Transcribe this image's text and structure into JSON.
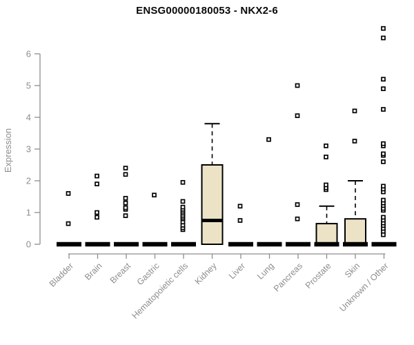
{
  "chart_data": {
    "type": "boxplot",
    "title": "ENSG00000180053 - NKX2-6",
    "ylabel": "Expression",
    "xlabel": "",
    "ylim": [
      0,
      6.9
    ],
    "yticks": [
      0,
      1,
      2,
      3,
      4,
      5,
      6
    ],
    "grid": false,
    "legend": "none",
    "box_fill": "#ece3c7",
    "box_stroke": "#000000",
    "axis_color": "#8d8d8d",
    "label_color": "#8d8d8d",
    "title_color": "#0a0a0a",
    "categories": [
      "Bladder",
      "Brain",
      "Breast",
      "Gastric",
      "Hematopoietic cells",
      "Kidney",
      "Liver",
      "Lung",
      "Pancreas",
      "Prostate",
      "Skin",
      "Unknown / Other"
    ],
    "series": [
      {
        "name": "Bladder",
        "q1": 0,
        "median": 0,
        "q3": 0,
        "whisker_low": 0,
        "whisker_high": 0,
        "outliers": [
          0.65,
          1.6
        ]
      },
      {
        "name": "Brain",
        "q1": 0,
        "median": 0,
        "q3": 0,
        "whisker_low": 0,
        "whisker_high": 0,
        "outliers": [
          0.85,
          1.0,
          1.9,
          2.15
        ]
      },
      {
        "name": "Breast",
        "q1": 0,
        "median": 0,
        "q3": 0,
        "whisker_low": 0,
        "whisker_high": 0,
        "outliers": [
          0.9,
          1.1,
          1.15,
          1.3,
          1.45,
          2.2,
          2.4
        ]
      },
      {
        "name": "Gastric",
        "q1": 0,
        "median": 0,
        "q3": 0,
        "whisker_low": 0,
        "whisker_high": 0,
        "outliers": [
          1.55
        ]
      },
      {
        "name": "Hematopoietic cells",
        "q1": 0,
        "median": 0,
        "q3": 0,
        "whisker_low": 0,
        "whisker_high": 0,
        "outliers": [
          0.46,
          0.52,
          0.6,
          0.7,
          0.8,
          0.85,
          0.91,
          0.98,
          1.04,
          1.1,
          1.17,
          1.35,
          1.95
        ]
      },
      {
        "name": "Kidney",
        "q1": 0,
        "median": 0.75,
        "q3": 2.5,
        "whisker_low": 0,
        "whisker_high": 3.8,
        "outliers": []
      },
      {
        "name": "Liver",
        "q1": 0,
        "median": 0,
        "q3": 0,
        "whisker_low": 0,
        "whisker_high": 0,
        "outliers": [
          0.75,
          1.2
        ]
      },
      {
        "name": "Lung",
        "q1": 0,
        "median": 0,
        "q3": 0,
        "whisker_low": 0,
        "whisker_high": 0,
        "outliers": [
          3.3
        ]
      },
      {
        "name": "Pancreas",
        "q1": 0,
        "median": 0,
        "q3": 0,
        "whisker_low": 0,
        "whisker_high": 0,
        "outliers": [
          0.8,
          1.25,
          4.05,
          5.0
        ]
      },
      {
        "name": "Prostate",
        "q1": 0,
        "median": 0,
        "q3": 0.65,
        "whisker_low": 0,
        "whisker_high": 1.2,
        "outliers": [
          1.72,
          1.78,
          1.87,
          2.75,
          3.1
        ]
      },
      {
        "name": "Skin",
        "q1": 0,
        "median": 0,
        "q3": 0.8,
        "whisker_low": 0,
        "whisker_high": 2.0,
        "outliers": [
          3.25,
          4.2
        ]
      },
      {
        "name": "Unknown / Other",
        "q1": 0,
        "median": 0,
        "q3": 0,
        "whisker_low": 0,
        "whisker_high": 0,
        "outliers": [
          0.3,
          0.41,
          0.5,
          0.59,
          0.67,
          0.76,
          0.85,
          1.07,
          1.13,
          1.22,
          1.3,
          1.39,
          1.65,
          1.74,
          1.83,
          2.6,
          2.8,
          2.85,
          3.1,
          3.17,
          4.25,
          4.9,
          5.2,
          6.5,
          6.8
        ]
      }
    ]
  }
}
